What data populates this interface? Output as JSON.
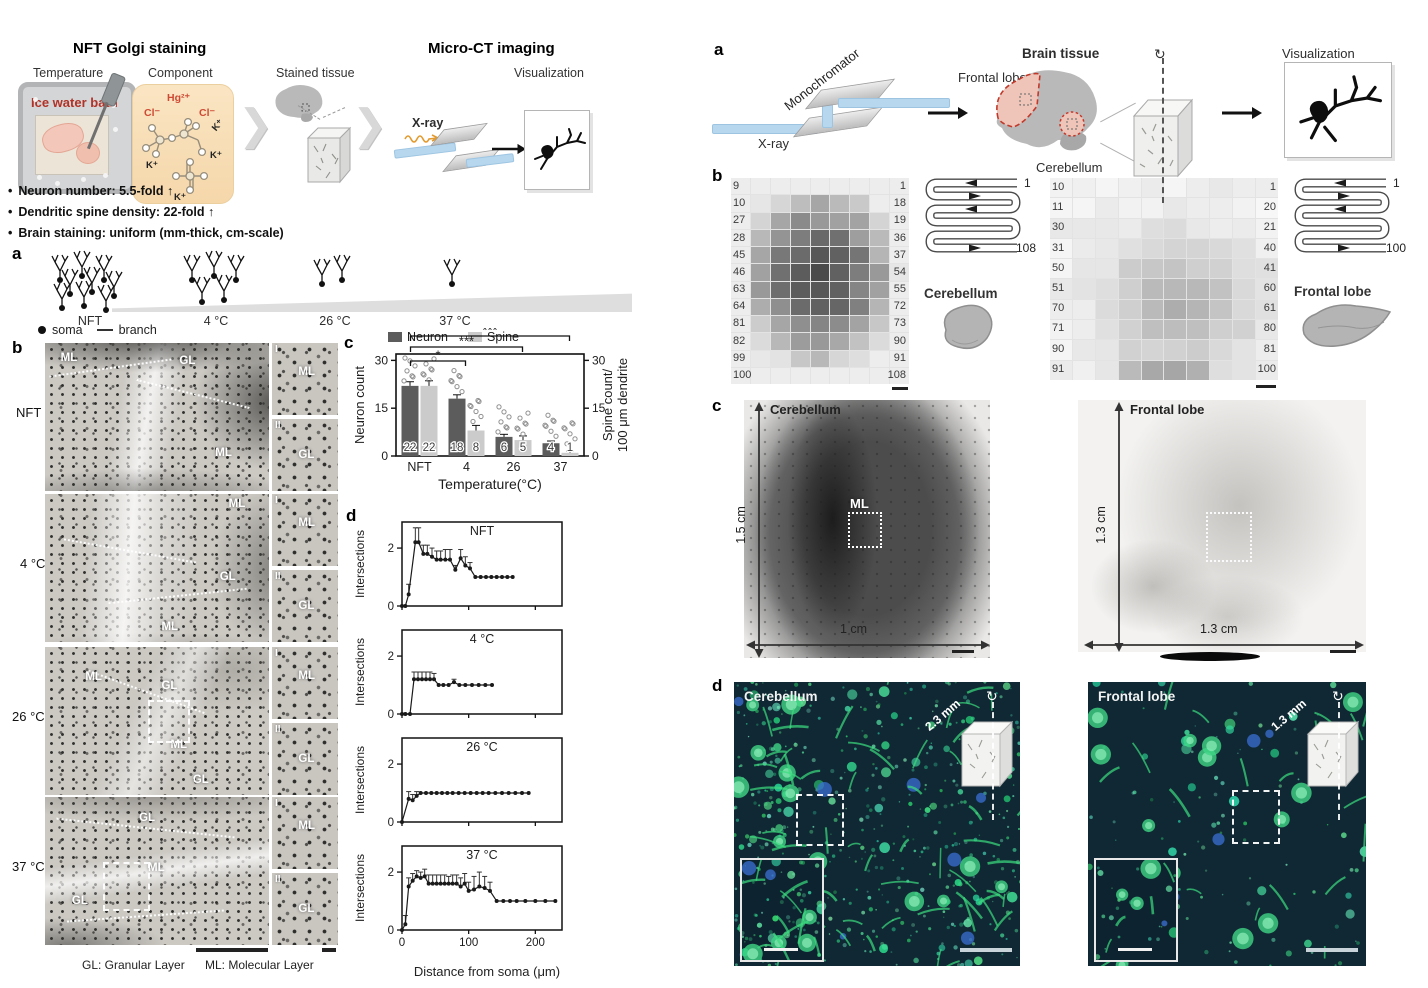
{
  "chart_data": [
    {
      "type": "bar",
      "categories": [
        "NFT",
        "4",
        "26",
        "37"
      ],
      "series": [
        {
          "name": "Neuron",
          "values": [
            22,
            18,
            6,
            4
          ],
          "color": "#5c5c5c"
        },
        {
          "name": "Spine",
          "values": [
            22,
            8,
            5,
            1
          ],
          "color": "#cbcbcb"
        }
      ],
      "errors": [
        [
          1.3,
          1.2,
          0.8,
          0.7
        ],
        [
          1.6,
          1.6,
          1.3,
          0.5
        ]
      ],
      "bar_labels": [
        [
          "22",
          "18",
          "6",
          "4"
        ],
        [
          "22",
          "8",
          "5",
          "1"
        ]
      ],
      "ylabel_left": "Neuron count",
      "ylabel_right_1": "Spine count/",
      "ylabel_right_2": "100 μm dendrite",
      "xlabel": "Temperature(°C)",
      "yticks": [
        0,
        15,
        30
      ],
      "ylim": [
        0,
        32
      ],
      "legend_position": "top",
      "significance": [
        {
          "from": 0,
          "to": 1,
          "label": "*"
        },
        {
          "from": 0,
          "to": 2,
          "label": "***"
        },
        {
          "from": 0,
          "to": 3,
          "label": "***"
        }
      ]
    },
    {
      "type": "line",
      "title": "NFT",
      "ylabel": "Intersections",
      "xlabel": "Distance from soma (μm)",
      "xlim": [
        0,
        240
      ],
      "ylim": [
        0,
        2.9
      ],
      "xticks": [
        0,
        100,
        200
      ],
      "yticks": [
        0,
        2
      ],
      "x": [
        0,
        5,
        10,
        20,
        25,
        32,
        38,
        45,
        52,
        58,
        65,
        72,
        80,
        88,
        95,
        102,
        110,
        118,
        126,
        134,
        142,
        150,
        158,
        166
      ],
      "y": [
        0,
        0,
        0.4,
        2.2,
        2.2,
        1.8,
        1.8,
        1.7,
        1.6,
        1.6,
        1.6,
        1.6,
        1.25,
        1.65,
        1.4,
        1.3,
        1.0,
        1.0,
        1.0,
        1.0,
        1.0,
        1.0,
        1.0,
        1.0
      ],
      "err": [
        0,
        0,
        0.35,
        0.5,
        0.5,
        0.3,
        0.3,
        0.3,
        0.3,
        0.3,
        0.35,
        0.35,
        0.15,
        0.3,
        0.3,
        0.2,
        0,
        0,
        0,
        0,
        0,
        0,
        0,
        0
      ]
    },
    {
      "type": "line",
      "title": "4 °C",
      "ylabel": "Intersections",
      "xlabel": "Distance from soma (μm)",
      "xlim": [
        0,
        240
      ],
      "ylim": [
        0,
        2.9
      ],
      "xticks": [
        0,
        100,
        200
      ],
      "yticks": [
        0,
        2
      ],
      "x": [
        0,
        5,
        12,
        18,
        24,
        30,
        36,
        42,
        48,
        55,
        62,
        70,
        78,
        86,
        95,
        105,
        115,
        125,
        135
      ],
      "y": [
        0,
        0,
        0,
        1.2,
        1.2,
        1.2,
        1.2,
        1.2,
        1.2,
        1.0,
        1.0,
        1.0,
        1.1,
        1.0,
        1.0,
        1.0,
        1.0,
        1.0,
        1.0
      ],
      "err": [
        0,
        0,
        0,
        0.25,
        0.25,
        0.25,
        0.25,
        0.25,
        0.2,
        0,
        0,
        0,
        0.1,
        0,
        0,
        0,
        0,
        0,
        0
      ]
    },
    {
      "type": "line",
      "title": "26 °C",
      "ylabel": "Intersections",
      "xlabel": "Distance from soma (μm)",
      "xlim": [
        0,
        240
      ],
      "ylim": [
        0,
        2.9
      ],
      "xticks": [
        0,
        100,
        200
      ],
      "yticks": [
        0,
        2
      ],
      "x": [
        0,
        10,
        16,
        22,
        28,
        36,
        44,
        52,
        60,
        68,
        76,
        85,
        94,
        103,
        112,
        121,
        130,
        140,
        150,
        160,
        170,
        180,
        190
      ],
      "y": [
        0,
        0.8,
        0.75,
        0.9,
        1,
        1,
        1,
        1,
        1,
        1,
        1,
        1,
        1,
        1,
        1,
        1,
        1,
        1,
        1,
        1,
        1,
        1,
        1
      ],
      "err": [
        0,
        0.25,
        0.2,
        0.15,
        0,
        0,
        0,
        0,
        0,
        0,
        0,
        0,
        0,
        0,
        0,
        0,
        0,
        0,
        0,
        0,
        0,
        0,
        0
      ]
    },
    {
      "type": "line",
      "title": "37 °C",
      "ylabel": "Intersections",
      "xlabel": "Distance from soma (μm)",
      "xlim": [
        0,
        240
      ],
      "ylim": [
        0,
        2.9
      ],
      "xticks": [
        0,
        100,
        200
      ],
      "yticks": [
        0,
        2
      ],
      "x": [
        0,
        5,
        10,
        16,
        22,
        28,
        34,
        40,
        46,
        52,
        58,
        64,
        70,
        76,
        82,
        88,
        94,
        100,
        108,
        116,
        124,
        132,
        142,
        152,
        162,
        172,
        185,
        200,
        215,
        230
      ],
      "y": [
        0,
        0.2,
        1.5,
        1.7,
        1.85,
        1.8,
        1.85,
        1.6,
        1.6,
        1.6,
        1.6,
        1.6,
        1.6,
        1.6,
        1.6,
        1.5,
        1.6,
        1.35,
        1.4,
        1.5,
        1.45,
        1.35,
        1.0,
        1.0,
        1.0,
        1.0,
        1.0,
        1.0,
        1.0,
        1.0
      ],
      "err": [
        0,
        0.3,
        0.3,
        0.25,
        0.2,
        0.2,
        0.25,
        0.3,
        0.3,
        0.3,
        0.3,
        0.3,
        0.25,
        0.3,
        0.3,
        0.3,
        0.35,
        0.3,
        0.45,
        0.5,
        0.4,
        0.3,
        0,
        0,
        0,
        0,
        0,
        0,
        0,
        0
      ]
    }
  ],
  "figure_left": {
    "header": {
      "title_staining": "NFT Golgi staining",
      "title_ct": "Micro-CT imaging",
      "step_temperature": "Temperature",
      "step_component": "Component",
      "step_stained_tissue": "Stained tissue",
      "step_visualization": "Visualization",
      "ice_bath_label": "Ice water bath",
      "chem_hg": "Hg²⁺",
      "chem_cl_left": "Cl⁻",
      "chem_cl_right": "Cl⁻",
      "chem_k": [
        "K⁺",
        "K⁺",
        "K⁺",
        "K⁺"
      ],
      "xray_label": "X-ray",
      "bullets": [
        "Neuron number: 5.5-fold ↑",
        "Dendritic spine density: 22-fold ↑",
        "Brain staining: uniform (mm-thick, cm-scale)"
      ]
    },
    "panel_a": {
      "label": "a",
      "conditions": [
        {
          "name": "NFT",
          "neurons": 9
        },
        {
          "name": "4 °C",
          "neurons": 5
        },
        {
          "name": "26 °C",
          "neurons": 2
        },
        {
          "name": "37 °C",
          "neurons": 1
        }
      ],
      "legend_soma": "soma",
      "legend_branch": "branch"
    },
    "panel_b": {
      "label": "b",
      "row_names": [
        "NFT",
        "4 °C",
        "26 °C",
        "37 °C"
      ],
      "inset_marks": [
        "I",
        "II"
      ],
      "region_ml": "ML",
      "region_gl": "GL",
      "caption_gl": "GL: Granular Layer",
      "caption_ml": "ML: Molecular Layer"
    },
    "panel_c_label": "c",
    "panel_d_label": "d"
  },
  "figure_right": {
    "panel_a": {
      "label": "a",
      "monochromator": "Monochromator",
      "xray": "X-ray",
      "brain_tissue": "Brain tissue",
      "frontal_lobe": "Frontal lobe",
      "cerebellum": "Cerebellum",
      "visualization": "Visualization"
    },
    "panel_b": {
      "label": "b",
      "cerebellum": {
        "name": "Cerebellum",
        "rows": 12,
        "cols": 9,
        "left_numbers": [
          "9",
          "10",
          "27",
          "28",
          "45",
          "46",
          "63",
          "64",
          "81",
          "82",
          "99",
          "100"
        ],
        "right_numbers": [
          "1",
          "18",
          "19",
          "36",
          "37",
          "54",
          "55",
          "72",
          "73",
          "90",
          "91",
          "108"
        ],
        "path_start": "1",
        "path_end": "108"
      },
      "frontal": {
        "name": "Frontal lobe",
        "rows": 10,
        "cols": 10,
        "left_numbers": [
          "10",
          "11",
          "30",
          "31",
          "50",
          "51",
          "70",
          "71",
          "90",
          "91"
        ],
        "right_numbers": [
          "1",
          "20",
          "21",
          "40",
          "41",
          "60",
          "61",
          "80",
          "81",
          "100"
        ],
        "path_start": "1",
        "path_end": "100"
      }
    },
    "panel_c": {
      "label": "c",
      "cerebellum": {
        "name": "Cerebellum",
        "height_label": "1.5 cm",
        "width_label": "1 cm",
        "region": "ML"
      },
      "frontal": {
        "name": "Frontal lobe",
        "height_label": "1.3 cm",
        "width_label": "1.3 cm"
      }
    },
    "panel_d": {
      "label": "d",
      "cerebellum": {
        "name": "Cerebellum",
        "depth_label": "2.3 mm"
      },
      "frontal": {
        "name": "Frontal lobe",
        "depth_label": "1.3 mm"
      }
    }
  }
}
